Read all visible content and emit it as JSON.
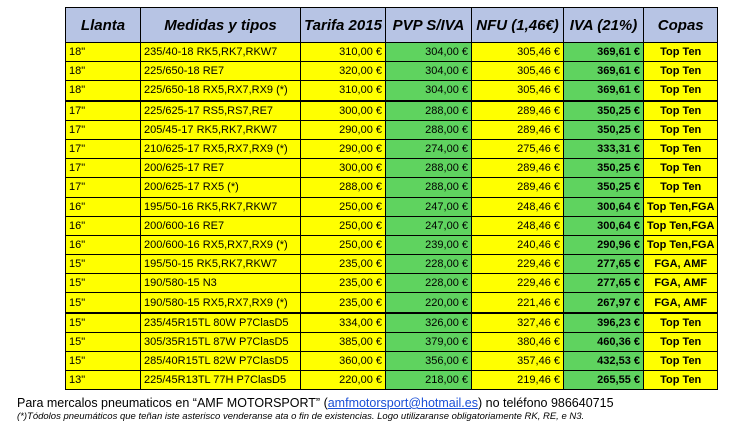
{
  "table": {
    "headers": [
      "Llanta",
      "Medidas y tipos",
      "Tarifa 2015",
      "PVP S/IVA",
      "NFU (1,46€)",
      "IVA (21%)",
      "Copas"
    ],
    "rows": [
      {
        "llanta": "18\"",
        "medida": "235/40-18 RK5,RK7,RKW7",
        "tarifa": "310,00 €",
        "pvp": "304,00 €",
        "nfu": "305,46 €",
        "iva": "369,61 €",
        "copas": "Top Ten"
      },
      {
        "llanta": "18\"",
        "medida": "225/650-18 RE7",
        "tarifa": "320,00 €",
        "pvp": "304,00 €",
        "nfu": "305,46 €",
        "iva": "369,61 €",
        "copas": "Top Ten"
      },
      {
        "llanta": "18\"",
        "medida": "225/650-18 RX5,RX7,RX9 (*)",
        "tarifa": "310,00 €",
        "pvp": "304,00 €",
        "nfu": "305,46 €",
        "iva": "369,61 €",
        "copas": "Top Ten"
      },
      {
        "llanta": "17\"",
        "medida": "225/625-17 RS5,RS7,RE7",
        "tarifa": "300,00 €",
        "pvp": "288,00 €",
        "nfu": "289,46 €",
        "iva": "350,25 €",
        "copas": "Top Ten"
      },
      {
        "llanta": "17\"",
        "medida": "205/45-17 RK5,RK7,RKW7",
        "tarifa": "290,00 €",
        "pvp": "288,00 €",
        "nfu": "289,46 €",
        "iva": "350,25 €",
        "copas": "Top Ten"
      },
      {
        "llanta": "17\"",
        "medida": "210/625-17 RX5,RX7,RX9 (*)",
        "tarifa": "290,00 €",
        "pvp": "274,00 €",
        "nfu": "275,46 €",
        "iva": "333,31 €",
        "copas": "Top Ten"
      },
      {
        "llanta": "17\"",
        "medida": "200/625-17 RE7",
        "tarifa": "300,00 €",
        "pvp": "288,00 €",
        "nfu": "289,46 €",
        "iva": "350,25 €",
        "copas": "Top Ten"
      },
      {
        "llanta": "17\"",
        "medida": "200/625-17 RX5 (*)",
        "tarifa": "288,00 €",
        "pvp": "288,00 €",
        "nfu": "289,46 €",
        "iva": "350,25 €",
        "copas": "Top Ten"
      },
      {
        "llanta": "16\"",
        "medida": "195/50-16 RK5,RK7,RKW7",
        "tarifa": "250,00 €",
        "pvp": "247,00 €",
        "nfu": "248,46 €",
        "iva": "300,64 €",
        "copas": "Top Ten,FGA"
      },
      {
        "llanta": "16\"",
        "medida": "200/600-16 RE7",
        "tarifa": "250,00 €",
        "pvp": "247,00 €",
        "nfu": "248,46 €",
        "iva": "300,64 €",
        "copas": "Top Ten,FGA"
      },
      {
        "llanta": "16\"",
        "medida": "200/600-16 RX5,RX7,RX9 (*)",
        "tarifa": "250,00 €",
        "pvp": "239,00 €",
        "nfu": "240,46 €",
        "iva": "290,96 €",
        "copas": "Top Ten,FGA"
      },
      {
        "llanta": "15\"",
        "medida": "195/50-15 RK5,RK7,RKW7",
        "tarifa": "235,00 €",
        "pvp": "228,00 €",
        "nfu": "229,46 €",
        "iva": "277,65 €",
        "copas": "FGA, AMF"
      },
      {
        "llanta": "15\"",
        "medida": "190/580-15 N3",
        "tarifa": "235,00 €",
        "pvp": "228,00 €",
        "nfu": "229,46 €",
        "iva": "277,65 €",
        "copas": "FGA, AMF"
      },
      {
        "llanta": "15\"",
        "medida": "190/580-15 RX5,RX7,RX9 (*)",
        "tarifa": "235,00 €",
        "pvp": "220,00 €",
        "nfu": "221,46 €",
        "iva": "267,97 €",
        "copas": "FGA, AMF"
      },
      {
        "llanta": "15\"",
        "medida": "235/45R15TL 80W P7ClasD5",
        "tarifa": "334,00 €",
        "pvp": "326,00 €",
        "nfu": "327,46 €",
        "iva": "396,23 €",
        "copas": "Top Ten"
      },
      {
        "llanta": "15\"",
        "medida": "305/35R15TL 87W P7ClasD5",
        "tarifa": "385,00 €",
        "pvp": "379,00 €",
        "nfu": "380,46 €",
        "iva": "460,36 €",
        "copas": "Top Ten"
      },
      {
        "llanta": "15\"",
        "medida": "285/40R15TL 82W P7ClasD5",
        "tarifa": "360,00 €",
        "pvp": "356,00 €",
        "nfu": "357,46 €",
        "iva": "432,53 €",
        "copas": "Top Ten"
      },
      {
        "llanta": "13\"",
        "medida": "225/45R13TL 77H P7ClasD5",
        "tarifa": "220,00 €",
        "pvp": "218,00 €",
        "nfu": "219,46 €",
        "iva": "265,55 €",
        "copas": "Top Ten"
      }
    ]
  },
  "footer": {
    "line1_before": "Para mercalos pneumaticos en “AMF MOTORSPORT” (",
    "email": "amfmotorsport@hotmail.es",
    "line1_after": ") no teléfono 986640715",
    "line2": "(*)Tódolos pneumáticos que teñan iste asterisco venderanse ata o fin de existencias. Logo utilizaranse obligatoriamente RK, RE, e N3."
  },
  "colors": {
    "header": "#b7c4e4",
    "yellow": "#ffff00",
    "green": "#5fd35f"
  }
}
